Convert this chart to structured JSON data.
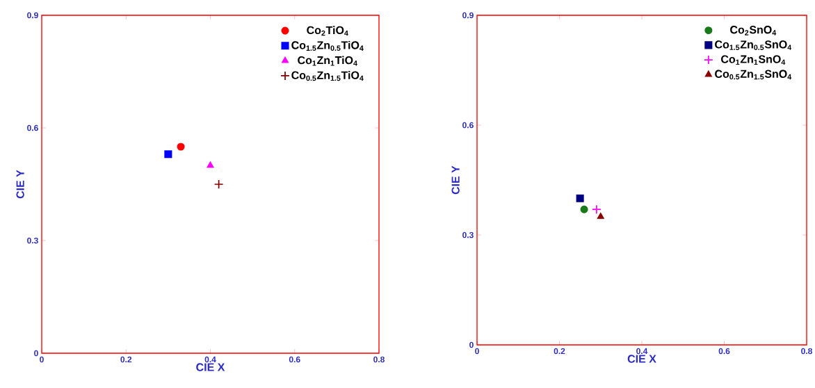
{
  "chart_data": [
    {
      "type": "scatter",
      "xlabel": "CIE X",
      "ylabel": "CIE Y",
      "xlim": [
        0,
        0.8
      ],
      "ylim": [
        0,
        0.9
      ],
      "xticks": [
        0,
        0.2,
        0.4,
        0.6,
        0.8
      ],
      "yticks": [
        0,
        0.3,
        0.6,
        0.9
      ],
      "legend": "top right",
      "series": [
        {
          "name": "Co$_{2}$TiO$_{4}$",
          "color": "#ff0000",
          "marker": "circle",
          "x": [
            0.33
          ],
          "values": [
            0.55
          ]
        },
        {
          "name": "Co$_{1.5}$Zn$_{0.5}$TiO$_{4}$",
          "color": "#0000ff",
          "marker": "square",
          "x": [
            0.3
          ],
          "values": [
            0.53
          ]
        },
        {
          "name": "Co$_{1}$Zn$_{1}$TiO$_{4}$",
          "color": "#ff00ff",
          "marker": "triangle",
          "x": [
            0.4
          ],
          "values": [
            0.5
          ]
        },
        {
          "name": "Co$_{0.5}$Zn$_{1.5}$TiO$_{4}$",
          "color": "#800000",
          "marker": "cross",
          "x": [
            0.42
          ],
          "values": [
            0.45
          ]
        }
      ]
    },
    {
      "type": "scatter",
      "xlabel": "CIE X",
      "ylabel": "CIE Y",
      "xlim": [
        0,
        0.8
      ],
      "ylim": [
        0,
        0.9
      ],
      "xticks": [
        0,
        0.2,
        0.4,
        0.6,
        0.8
      ],
      "yticks": [
        0,
        0.3,
        0.6,
        0.9
      ],
      "legend": "top right",
      "series": [
        {
          "name": "Co$_{2}$SnO$_{4}$",
          "color": "#1a7a1a",
          "marker": "circle",
          "x": [
            0.26
          ],
          "values": [
            0.37
          ]
        },
        {
          "name": "Co$_{1.5}$Zn$_{0.5}$SnO$_{4}$",
          "color": "#000080",
          "marker": "square",
          "x": [
            0.25
          ],
          "values": [
            0.4
          ]
        },
        {
          "name": "Co$_{1}$Zn$_{1}$SnO$_{4}$",
          "color": "#ff00ff",
          "marker": "cross",
          "x": [
            0.29
          ],
          "values": [
            0.37
          ]
        },
        {
          "name": "Co$_{0.5}$Zn$_{1.5}$SnO$_{4}$",
          "color": "#8b0000",
          "marker": "triangle",
          "x": [
            0.3
          ],
          "values": [
            0.35
          ]
        }
      ]
    }
  ]
}
